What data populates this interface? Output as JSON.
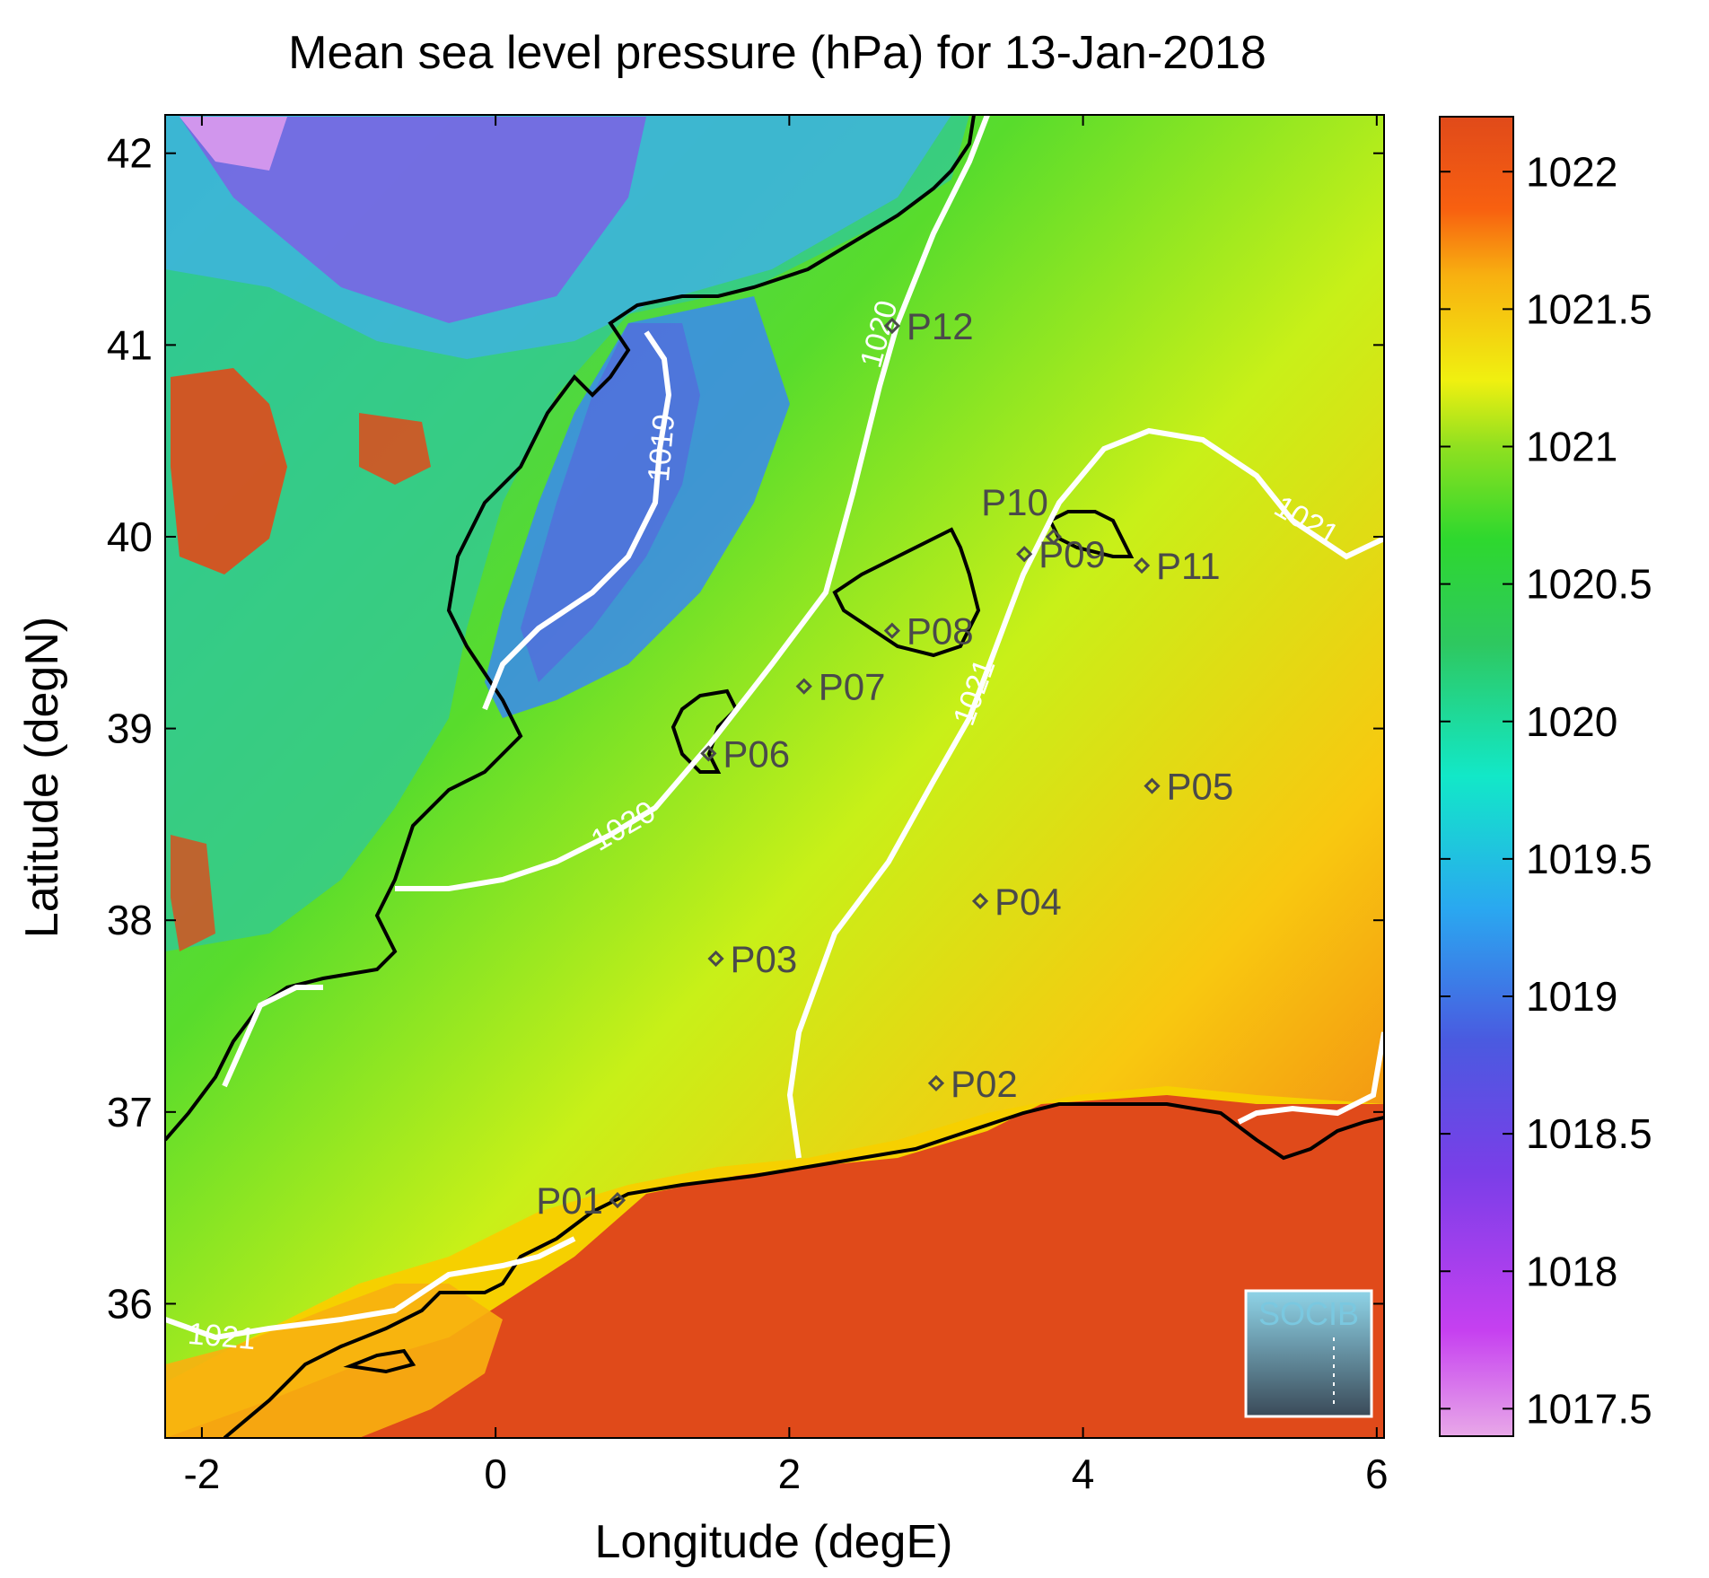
{
  "title": "Mean sea level pressure (hPa) for 13-Jan-2018",
  "xlabel": "Longitude (degE)",
  "ylabel": "Latitude (degN)",
  "x_ticks": [
    "-2",
    "0",
    "2",
    "4",
    "6"
  ],
  "y_ticks": [
    "36",
    "37",
    "38",
    "39",
    "40",
    "41",
    "42"
  ],
  "colorbar": {
    "ticks": [
      "1017.5",
      "1018",
      "1018.5",
      "1019",
      "1019.5",
      "1020",
      "1020.5",
      "1021",
      "1021.5",
      "1022"
    ],
    "range": [
      1017.4,
      1022.2
    ]
  },
  "contour_labels": [
    "1019",
    "1020",
    "1020",
    "1021",
    "1021",
    "1021"
  ],
  "points": [
    {
      "name": "P01",
      "lon": 0.83,
      "lat": 36.54
    },
    {
      "name": "P02",
      "lon": 3.0,
      "lat": 37.15
    },
    {
      "name": "P03",
      "lon": 1.5,
      "lat": 37.8
    },
    {
      "name": "P04",
      "lon": 3.3,
      "lat": 38.1
    },
    {
      "name": "P05",
      "lon": 4.47,
      "lat": 38.7
    },
    {
      "name": "P06",
      "lon": 1.45,
      "lat": 38.87
    },
    {
      "name": "P07",
      "lon": 2.1,
      "lat": 39.22
    },
    {
      "name": "P08",
      "lon": 2.7,
      "lat": 39.51
    },
    {
      "name": "P09",
      "lon": 3.6,
      "lat": 39.91
    },
    {
      "name": "P10",
      "lon": 3.8,
      "lat": 40.0
    },
    {
      "name": "P11",
      "lon": 4.4,
      "lat": 39.85
    },
    {
      "name": "P12",
      "lon": 2.7,
      "lat": 41.1
    }
  ],
  "logo_text": "SOCIB",
  "map_extent": {
    "lon": [
      -2.25,
      6.05
    ],
    "lat": [
      35.3,
      42.2
    ]
  },
  "colors": {
    "low": "#e8a8e8",
    "mid": "#2ecc40",
    "high": "#e04a1a",
    "contour": "#ffffff",
    "coast": "#000000"
  }
}
